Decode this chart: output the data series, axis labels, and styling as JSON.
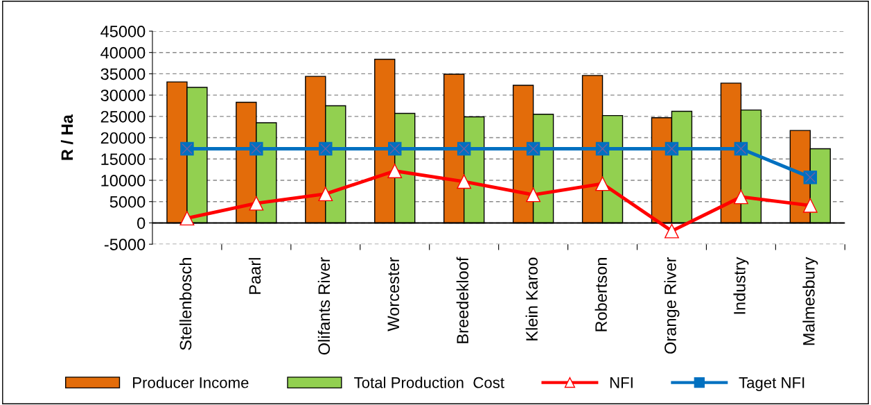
{
  "chart_data": {
    "type": "bar",
    "ylabel": "R / Ha",
    "categories": [
      "Stellenbosch",
      "Paarl",
      "Olifants River",
      "Worcester",
      "Breedekloof",
      "Klein Karoo",
      "Robertson",
      "Orange River",
      "Industry",
      "Malmesbury"
    ],
    "series": [
      {
        "name": "Producer Income",
        "color": "#e36c0a",
        "values": [
          33100,
          28300,
          34400,
          38400,
          34900,
          32300,
          34600,
          24700,
          32800,
          21700
        ]
      },
      {
        "name": "Total Production  Cost",
        "color": "#92d050",
        "values": [
          31800,
          23500,
          27500,
          25700,
          24900,
          25500,
          25200,
          26200,
          26500,
          17400
        ]
      },
      {
        "name": "NFI",
        "type": "line",
        "color": "#ff0000",
        "marker": "triangle",
        "values": [
          1100,
          4600,
          6800,
          12200,
          9700,
          6600,
          9200,
          -1900,
          6100,
          4100
        ]
      },
      {
        "name": "Taget NFI",
        "type": "line",
        "color": "#0070c0",
        "marker": "square",
        "values": [
          17400,
          17400,
          17400,
          17400,
          17400,
          17400,
          17400,
          17400,
          17400,
          10700
        ]
      }
    ],
    "ylim": [
      -5000,
      45000
    ],
    "yticks": [
      -5000,
      0,
      5000,
      10000,
      15000,
      20000,
      25000,
      30000,
      35000,
      40000,
      45000
    ],
    "grid": "y",
    "legend": "bottom"
  }
}
